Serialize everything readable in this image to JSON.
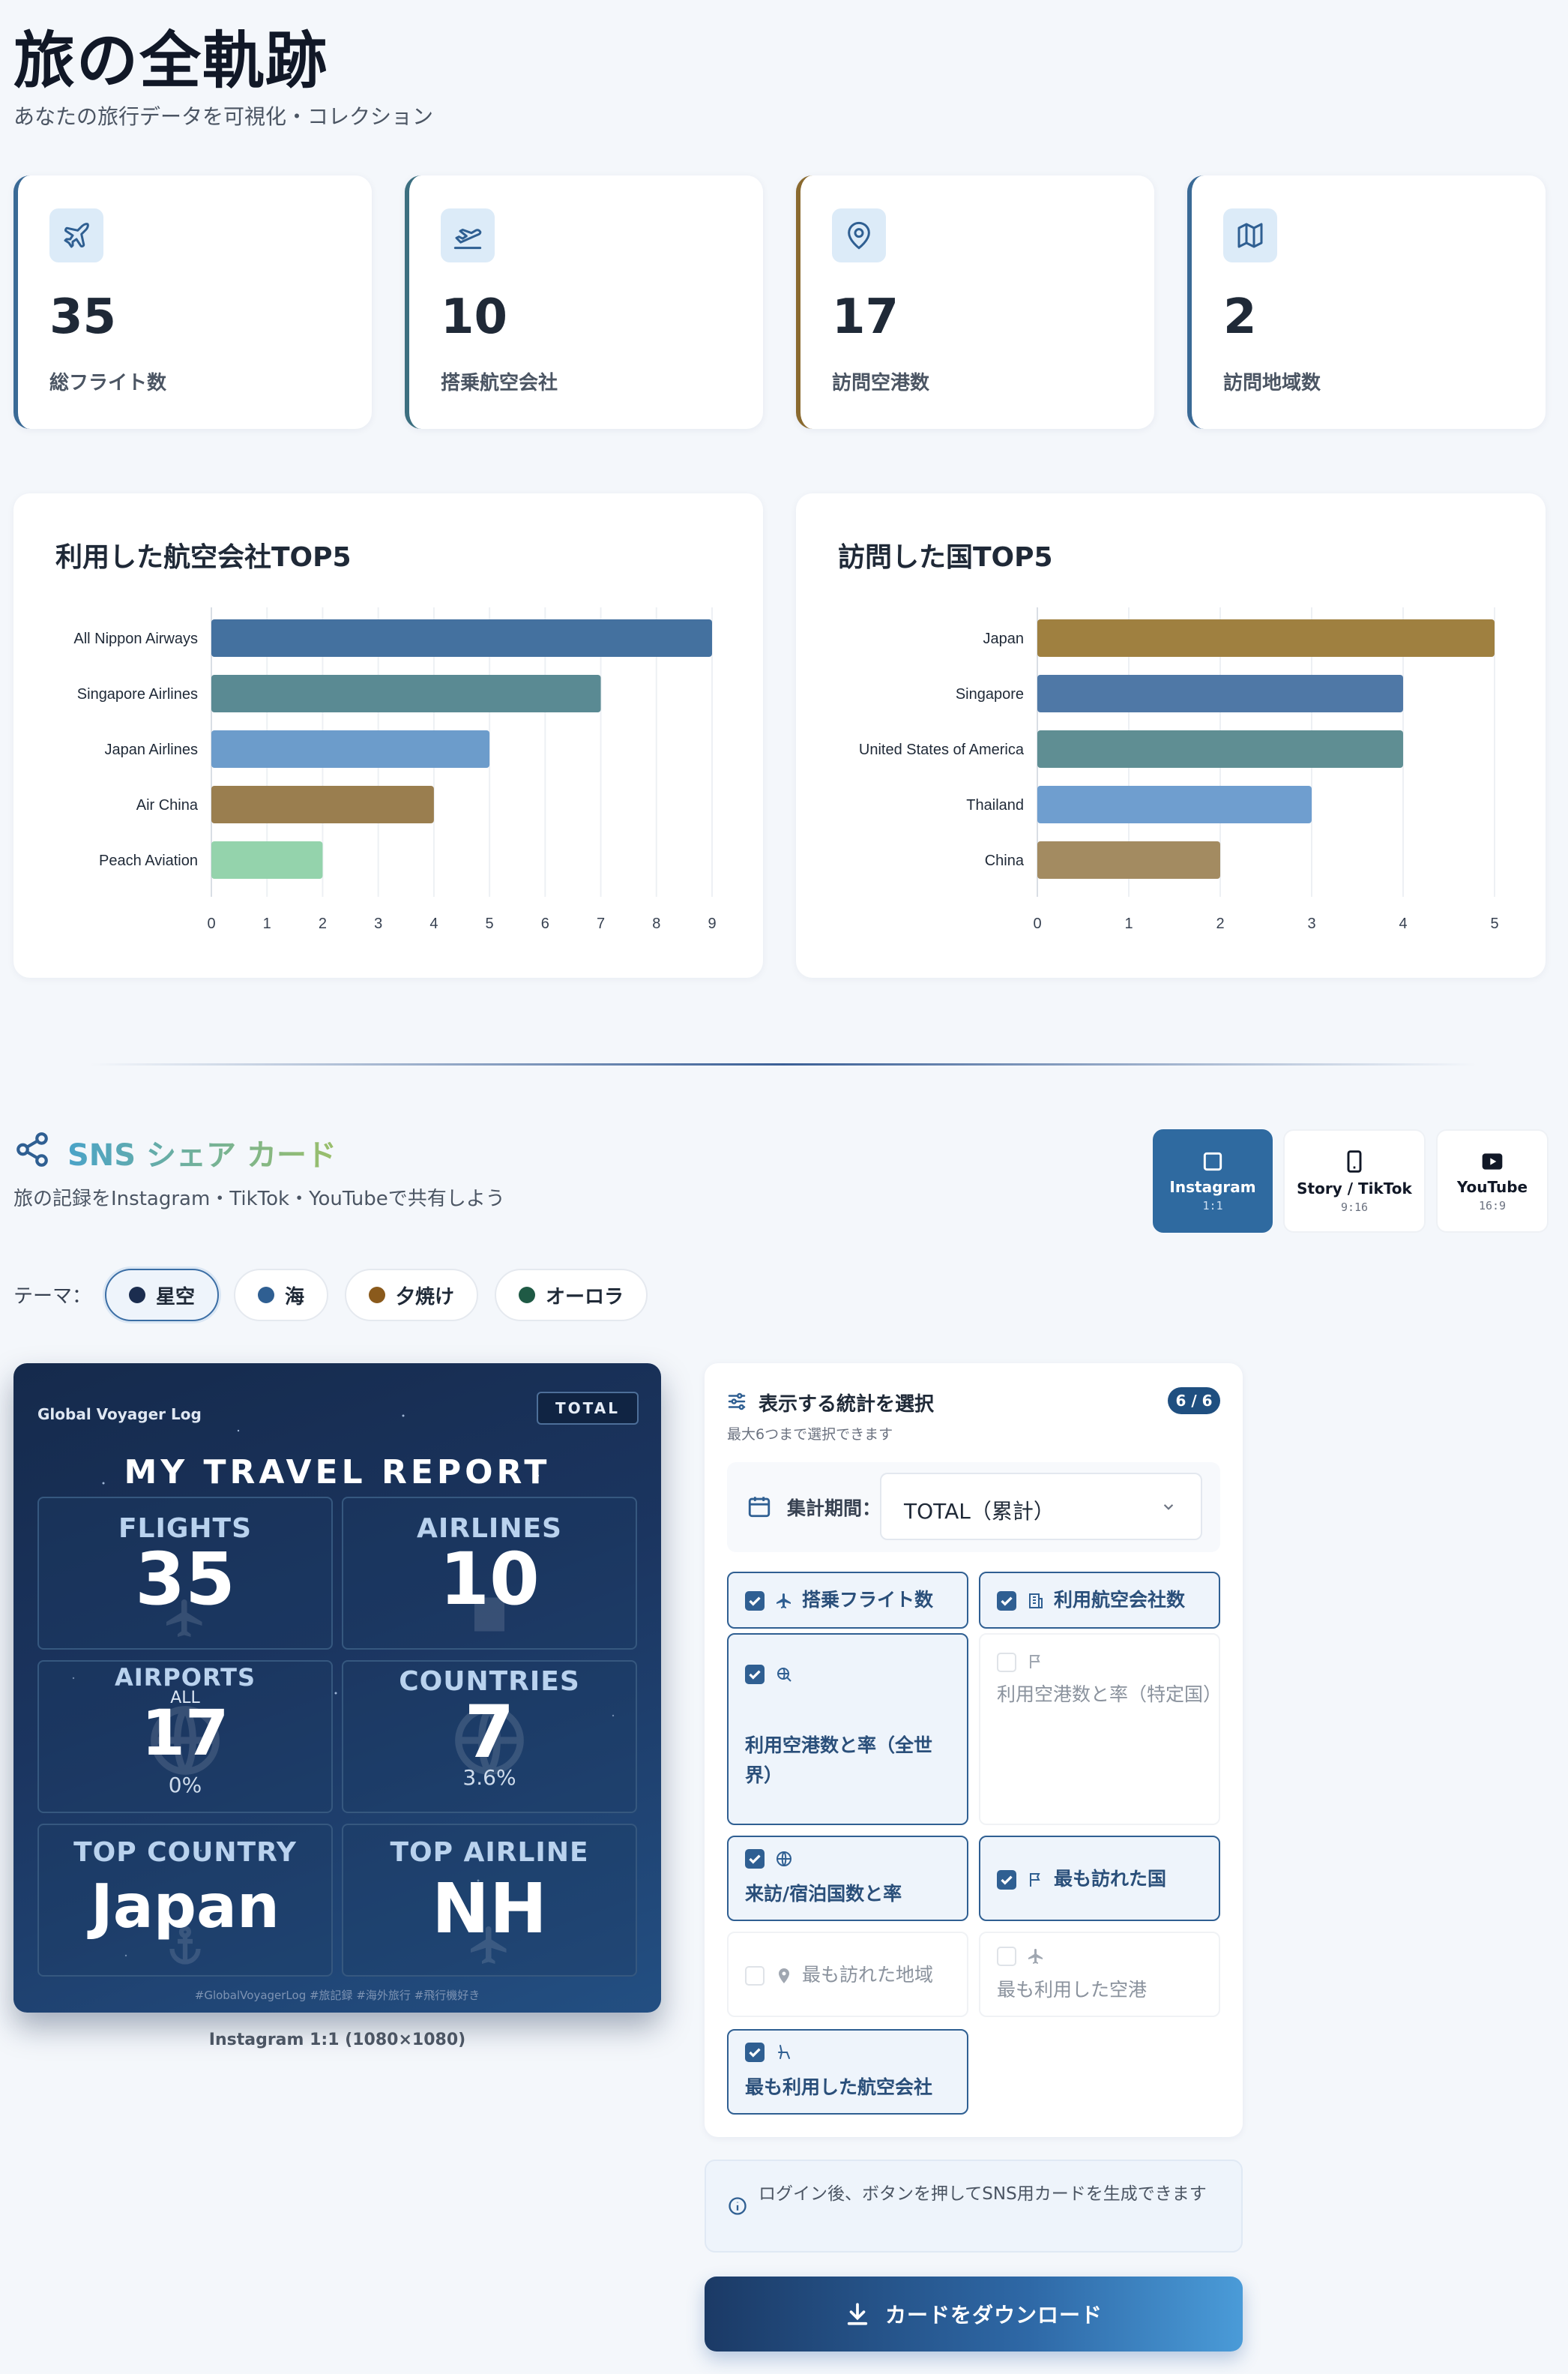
{
  "header": {
    "title": "旅の全軌跡",
    "subtitle": "あなたの旅行データを可視化・コレクション"
  },
  "stats": [
    {
      "value": "35",
      "label": "総フライト数",
      "icon": "plane-icon",
      "accent": "#3a6a96"
    },
    {
      "value": "10",
      "label": "搭乗航空会社",
      "icon": "takeoff-icon",
      "accent": "#3c6f80"
    },
    {
      "value": "17",
      "label": "訪問空港数",
      "icon": "map-pin-icon",
      "accent": "#8a6a2f"
    },
    {
      "value": "2",
      "label": "訪問地域数",
      "icon": "map-icon",
      "accent": "#3a6a96"
    }
  ],
  "charts": {
    "airlines_title": "利用した航空会社TOP5",
    "countries_title": "訪問した国TOP5"
  },
  "chart_data": [
    {
      "type": "bar",
      "orientation": "horizontal",
      "title": "利用した航空会社TOP5",
      "categories": [
        "All Nippon Airways",
        "Singapore Airlines",
        "Japan Airlines",
        "Air China",
        "Peach Aviation"
      ],
      "values": [
        9,
        7,
        5,
        4,
        2
      ],
      "colors": [
        "#44719f",
        "#5a8a93",
        "#6c9ccb",
        "#9a7e4f",
        "#94d3ac"
      ],
      "xlim": [
        0,
        9
      ],
      "xticks": [
        "0",
        "1",
        "2",
        "3",
        "4",
        "5",
        "6",
        "7",
        "8",
        "9"
      ],
      "grid": true
    },
    {
      "type": "bar",
      "orientation": "horizontal",
      "title": "訪問した国TOP5",
      "categories": [
        "Japan",
        "Singapore",
        "United States of America",
        "Thailand",
        "China"
      ],
      "values": [
        5,
        4,
        4,
        3,
        2
      ],
      "colors": [
        "#9f8040",
        "#4f78a6",
        "#5f8e93",
        "#6f9ecf",
        "#a38b61"
      ],
      "xlim": [
        0,
        5
      ],
      "xticks": [
        "0",
        "1",
        "2",
        "3",
        "4",
        "5"
      ],
      "grid": true
    }
  ],
  "sns": {
    "title": "SNS シェア カード",
    "subtitle": "旅の記録をInstagram・TikTok・YouTubeで共有しよう",
    "formats": [
      {
        "label": "Instagram",
        "ratio": "1:1"
      },
      {
        "label": "Story / TikTok",
        "ratio": "9:16"
      },
      {
        "label": "YouTube",
        "ratio": "16:9"
      }
    ],
    "theme_label": "テーマ：",
    "themes": [
      {
        "label": "星空",
        "color": "#1b2d4f"
      },
      {
        "label": "海",
        "color": "#2f5f92"
      },
      {
        "label": "夕焼け",
        "color": "#8a5a1c"
      },
      {
        "label": "オーロラ",
        "color": "#1f5a45"
      }
    ]
  },
  "card": {
    "brand": "Global Voyager Log",
    "badge": "TOTAL",
    "heading": "MY TRAVEL REPORT",
    "tiles": {
      "flights": {
        "label": "FLIGHTS",
        "value": "35"
      },
      "airlines": {
        "label": "AIRLINES",
        "value": "10"
      },
      "airports": {
        "label": "AIRPORTS",
        "small": "ALL",
        "value": "17",
        "sub": "0%"
      },
      "countries": {
        "label": "COUNTRIES",
        "value": "7",
        "sub": "3.6%"
      },
      "top_country": {
        "label": "TOP COUNTRY",
        "value": "Japan"
      },
      "top_airline": {
        "label": "TOP AIRLINE",
        "value": "NH"
      }
    },
    "footer": "#GlobalVoyagerLog #旅記録 #海外旅行 #飛行機好き",
    "caption": "Instagram 1:1 (1080×1080)"
  },
  "panel": {
    "title": "表示する統計を選択",
    "subtitle": "最大6つまで選択できます",
    "count": "6 / 6",
    "period_label": "集計期間：",
    "period_value": "TOTAL（累計）",
    "options": [
      {
        "label": "搭乗フライト数",
        "checked": true
      },
      {
        "label": "利用航空会社数",
        "checked": true
      },
      {
        "label": "利用空港数と率（全世界）",
        "checked": true
      },
      {
        "label": "利用空港数と率（特定国）",
        "checked": false
      },
      {
        "label": "来訪/宿泊国数と率",
        "checked": true
      },
      {
        "label": "最も訪れた国",
        "checked": true
      },
      {
        "label": "最も訪れた地域",
        "checked": false
      },
      {
        "label": "最も利用した空港",
        "checked": false
      },
      {
        "label": "最も利用した航空会社",
        "checked": true
      }
    ]
  },
  "info": "ログイン後、ボタンを押してSNS用カードを生成できます",
  "download_label": "カードをダウンロード"
}
